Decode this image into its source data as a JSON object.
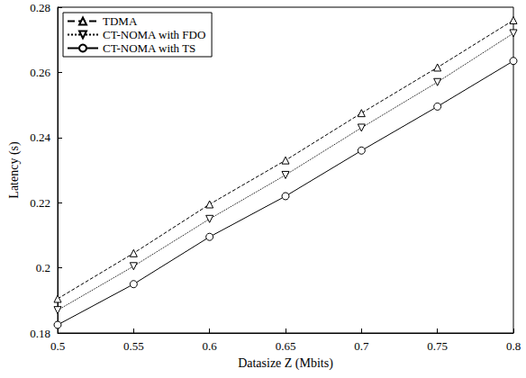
{
  "chart_data": {
    "type": "line",
    "x_label": "Datasize Z (Mbits)",
    "y_label": "Latency (s)",
    "x": [
      0.5,
      0.55,
      0.6,
      0.65,
      0.7,
      0.75,
      0.8
    ],
    "xlim": [
      0.5,
      0.8
    ],
    "xticks": [
      0.5,
      0.55,
      0.6,
      0.65,
      0.7,
      0.75,
      0.8
    ],
    "ylim": [
      0.18,
      0.28
    ],
    "yticks": [
      0.18,
      0.2,
      0.22,
      0.24,
      0.26,
      0.28
    ],
    "grid": false,
    "legend": "upper left",
    "series": [
      {
        "name": "TDMA",
        "color": "#000000",
        "marker": "triangle",
        "line_style": "dashed",
        "values": [
          0.1905,
          0.2045,
          0.2195,
          0.233,
          0.2475,
          0.2615,
          0.276
        ]
      },
      {
        "name": "CT-NOMA with FDO",
        "color": "#000000",
        "marker": "triangle_down",
        "line_style": "dotted",
        "values": [
          0.187,
          0.2005,
          0.215,
          0.2285,
          0.243,
          0.257,
          0.272
        ]
      },
      {
        "name": "CT-NOMA with TS",
        "color": "#000000",
        "marker": "circle",
        "line_style": "solid",
        "values": [
          0.1825,
          0.195,
          0.2095,
          0.222,
          0.236,
          0.2495,
          0.2635
        ]
      }
    ]
  }
}
